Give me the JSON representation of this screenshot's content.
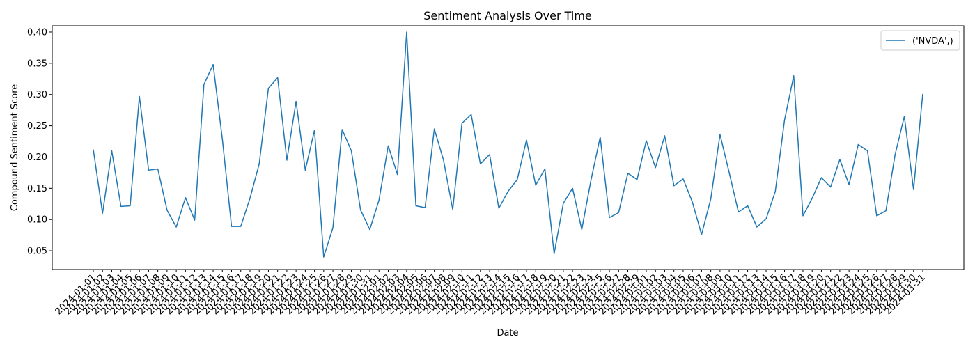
{
  "chart_data": {
    "type": "line",
    "title": "Sentiment Analysis Over Time",
    "xlabel": "Date",
    "ylabel": "Compound Sentiment Score",
    "ylim": [
      0.02,
      0.41
    ],
    "yticks": [
      0.05,
      0.1,
      0.15,
      0.2,
      0.25,
      0.3,
      0.35,
      0.4
    ],
    "ytick_labels": [
      "0.05",
      "0.10",
      "0.15",
      "0.20",
      "0.25",
      "0.30",
      "0.35",
      "0.40"
    ],
    "legend_position": "top-right",
    "grid": false,
    "series": [
      {
        "name": "('NVDA',)",
        "color": "#1f77b4",
        "values": [
          0.212,
          0.11,
          0.21,
          0.121,
          0.122,
          0.297,
          0.179,
          0.181,
          0.115,
          0.088,
          0.135,
          0.099,
          0.316,
          0.348,
          0.229,
          0.089,
          0.089,
          0.134,
          0.189,
          0.31,
          0.327,
          0.195,
          0.289,
          0.179,
          0.243,
          0.04,
          0.087,
          0.244,
          0.21,
          0.115,
          0.084,
          0.131,
          0.218,
          0.172,
          0.4,
          0.122,
          0.119,
          0.245,
          0.195,
          0.116,
          0.254,
          0.268,
          0.189,
          0.204,
          0.118,
          0.145,
          0.164,
          0.227,
          0.155,
          0.181,
          0.045,
          0.126,
          0.15,
          0.084,
          0.163,
          0.232,
          0.103,
          0.111,
          0.174,
          0.164,
          0.226,
          0.183,
          0.234,
          0.154,
          0.165,
          0.128,
          0.076,
          0.133,
          0.236,
          0.175,
          0.112,
          0.122,
          0.088,
          0.101,
          0.145,
          0.259,
          0.33,
          0.106,
          0.134,
          0.167,
          0.152,
          0.196,
          0.156,
          0.22,
          0.21,
          0.106,
          0.114,
          0.204,
          0.265,
          0.148,
          0.301
        ]
      }
    ],
    "categories": [
      "2024-01-01",
      "2024-01-02",
      "2024-01-03",
      "2024-01-04",
      "2024-01-05",
      "2024-01-06",
      "2024-01-07",
      "2024-01-08",
      "2024-01-09",
      "2024-01-10",
      "2024-01-11",
      "2024-01-12",
      "2024-01-13",
      "2024-01-14",
      "2024-01-15",
      "2024-01-16",
      "2024-01-17",
      "2024-01-18",
      "2024-01-19",
      "2024-01-20",
      "2024-01-21",
      "2024-01-22",
      "2024-01-23",
      "2024-01-24",
      "2024-01-25",
      "2024-01-26",
      "2024-01-27",
      "2024-01-28",
      "2024-01-29",
      "2024-01-30",
      "2024-01-31",
      "2024-02-01",
      "2024-02-02",
      "2024-02-03",
      "2024-02-04",
      "2024-02-05",
      "2024-02-06",
      "2024-02-07",
      "2024-02-08",
      "2024-02-09",
      "2024-02-10",
      "2024-02-11",
      "2024-02-12",
      "2024-02-13",
      "2024-02-14",
      "2024-02-15",
      "2024-02-16",
      "2024-02-17",
      "2024-02-18",
      "2024-02-19",
      "2024-02-20",
      "2024-02-21",
      "2024-02-22",
      "2024-02-23",
      "2024-02-24",
      "2024-02-25",
      "2024-02-26",
      "2024-02-27",
      "2024-02-28",
      "2024-02-29",
      "2024-03-01",
      "2024-03-02",
      "2024-03-03",
      "2024-03-04",
      "2024-03-05",
      "2024-03-06",
      "2024-03-07",
      "2024-03-08",
      "2024-03-09",
      "2024-03-10",
      "2024-03-11",
      "2024-03-12",
      "2024-03-13",
      "2024-03-14",
      "2024-03-15",
      "2024-03-16",
      "2024-03-17",
      "2024-03-18",
      "2024-03-19",
      "2024-03-20",
      "2024-03-21",
      "2024-03-22",
      "2024-03-23",
      "2024-03-24",
      "2024-03-25",
      "2024-03-26",
      "2024-03-27",
      "2024-03-28",
      "2024-03-29",
      "2024-03-30",
      "2024-03-31"
    ]
  }
}
